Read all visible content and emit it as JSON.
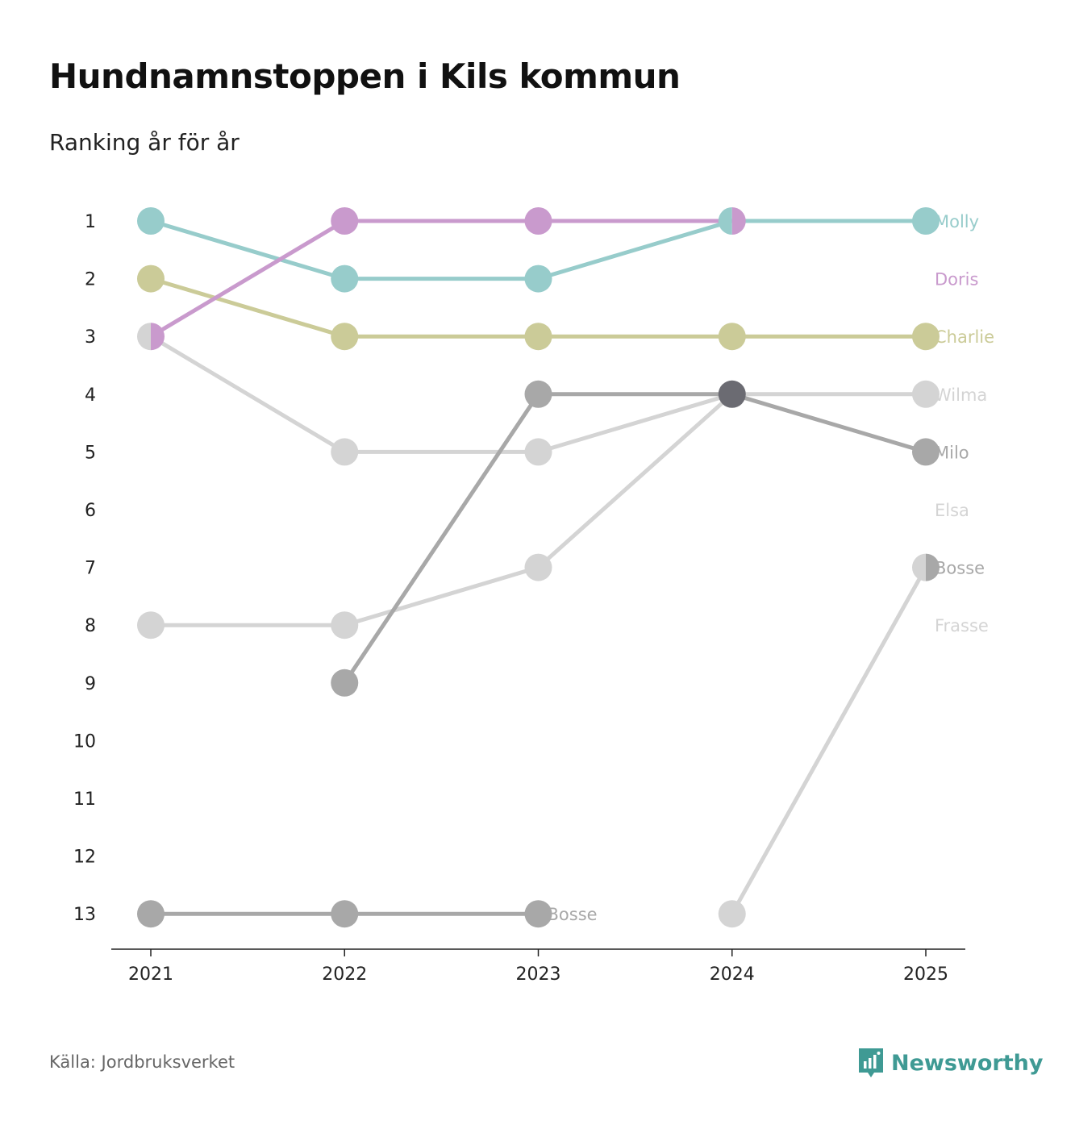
{
  "header": {
    "title": "Hundnamnstoppen i Kils kommun",
    "subtitle": "Ranking år för år"
  },
  "footer": {
    "source": "Källa: Jordbruksverket",
    "brand": "Newsworthy",
    "brand_color": "#3f9a94"
  },
  "chart_data": {
    "type": "line",
    "title": "Hundnamnstoppen i Kils kommun",
    "subtitle": "Ranking år för år",
    "xlabel": "",
    "ylabel": "",
    "x": [
      "2021",
      "2022",
      "2023",
      "2024",
      "2025"
    ],
    "y_ticks": [
      "1",
      "2",
      "3",
      "4",
      "5",
      "6",
      "7",
      "8",
      "9",
      "10",
      "11",
      "12",
      "13"
    ],
    "ylim": [
      1,
      13
    ],
    "y_inverted": true,
    "grid": false,
    "series": [
      {
        "name": "Frasse",
        "color": "#d4d4d4",
        "values": [
          null,
          null,
          null,
          13,
          7
        ]
      },
      {
        "name": "Elsa",
        "color": "#d4d4d4",
        "values": [
          8,
          8,
          7,
          4,
          null
        ]
      },
      {
        "name": "Wilma",
        "color": "#d4d4d4",
        "values": [
          3,
          5,
          5,
          4,
          4
        ]
      },
      {
        "name": "Bosse",
        "color": "#a8a8a8",
        "values": [
          13,
          13,
          13,
          null,
          null
        ]
      },
      {
        "name": "Bosse",
        "color": "#a8a8a8",
        "values": [
          null,
          null,
          null,
          null,
          7
        ]
      },
      {
        "name": "Milo",
        "color": "#a8a8a8",
        "values": [
          null,
          9,
          4,
          4,
          5
        ]
      },
      {
        "name": "Charlie",
        "color": "#cbcb98",
        "values": [
          2,
          3,
          3,
          3,
          3
        ]
      },
      {
        "name": "Molly",
        "color": "#97cccb",
        "values": [
          1,
          2,
          2,
          1,
          1
        ]
      },
      {
        "name": "Doris",
        "color": "#c99acd",
        "values": [
          3,
          1,
          1,
          1,
          null
        ]
      }
    ],
    "highlight_point": {
      "year": "2024",
      "rank": 4,
      "color": "#6b6b72"
    },
    "end_labels": [
      {
        "name": "Molly",
        "rank": 1,
        "color": "#97cccb"
      },
      {
        "name": "Doris",
        "rank": 2,
        "color": "#c99acd"
      },
      {
        "name": "Charlie",
        "rank": 3,
        "color": "#cbcb98"
      },
      {
        "name": "Wilma",
        "rank": 4,
        "color": "#d4d4d4"
      },
      {
        "name": "Milo",
        "rank": 5,
        "color": "#a8a8a8"
      },
      {
        "name": "Elsa",
        "rank": 6,
        "color": "#d4d4d4"
      },
      {
        "name": "Bosse",
        "rank": 7,
        "color": "#a8a8a8"
      },
      {
        "name": "Frasse",
        "rank": 8,
        "color": "#d4d4d4"
      }
    ],
    "inline_labels": [
      {
        "name": "Bosse",
        "year": "2023",
        "rank": 13,
        "color": "#a8a8a8"
      }
    ]
  }
}
